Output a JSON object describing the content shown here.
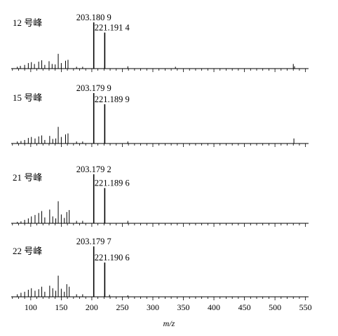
{
  "chart_data": {
    "type": "bar",
    "x_axis": {
      "label": "m/z",
      "xlim": [
        68,
        555
      ],
      "ticks": [
        "100",
        "150",
        "200",
        "250",
        "300",
        "350",
        "400",
        "450",
        "500",
        "550"
      ]
    },
    "panels": [
      {
        "label": "12 号峰",
        "annotations": [
          "203.180 9",
          "221.191 4"
        ],
        "peaks": [
          {
            "mz": 203.18,
            "intensity": 100
          },
          {
            "mz": 221.19,
            "intensity": 78
          }
        ],
        "minor_peaks": [
          {
            "mz": 78,
            "intensity": 4
          },
          {
            "mz": 83,
            "intensity": 6
          },
          {
            "mz": 90,
            "intensity": 8
          },
          {
            "mz": 96,
            "intensity": 12
          },
          {
            "mz": 101,
            "intensity": 14
          },
          {
            "mz": 106,
            "intensity": 10
          },
          {
            "mz": 113,
            "intensity": 15
          },
          {
            "mz": 118,
            "intensity": 18
          },
          {
            "mz": 123,
            "intensity": 8
          },
          {
            "mz": 130,
            "intensity": 16
          },
          {
            "mz": 135,
            "intensity": 10
          },
          {
            "mz": 140,
            "intensity": 9
          },
          {
            "mz": 145,
            "intensity": 32
          },
          {
            "mz": 150,
            "intensity": 12
          },
          {
            "mz": 157,
            "intensity": 17
          },
          {
            "mz": 161,
            "intensity": 19
          },
          {
            "mz": 175,
            "intensity": 4
          },
          {
            "mz": 185,
            "intensity": 4
          },
          {
            "mz": 203,
            "intensity": 8
          },
          {
            "mz": 221,
            "intensity": 6
          },
          {
            "mz": 259,
            "intensity": 5
          },
          {
            "mz": 337,
            "intensity": 4
          },
          {
            "mz": 530,
            "intensity": 10
          },
          {
            "mz": 532,
            "intensity": 5
          }
        ]
      },
      {
        "label": "15 号峰",
        "annotations": [
          "203.179 9",
          "221.189 9"
        ],
        "peaks": [
          {
            "mz": 203.18,
            "intensity": 100
          },
          {
            "mz": 221.19,
            "intensity": 78
          }
        ],
        "minor_peaks": [
          {
            "mz": 78,
            "intensity": 4
          },
          {
            "mz": 84,
            "intensity": 5
          },
          {
            "mz": 90,
            "intensity": 7
          },
          {
            "mz": 96,
            "intensity": 11
          },
          {
            "mz": 101,
            "intensity": 13
          },
          {
            "mz": 107,
            "intensity": 10
          },
          {
            "mz": 113,
            "intensity": 14
          },
          {
            "mz": 118,
            "intensity": 16
          },
          {
            "mz": 123,
            "intensity": 7
          },
          {
            "mz": 131,
            "intensity": 15
          },
          {
            "mz": 136,
            "intensity": 9
          },
          {
            "mz": 141,
            "intensity": 10
          },
          {
            "mz": 145,
            "intensity": 33
          },
          {
            "mz": 150,
            "intensity": 13
          },
          {
            "mz": 157,
            "intensity": 18
          },
          {
            "mz": 161,
            "intensity": 20
          },
          {
            "mz": 175,
            "intensity": 4
          },
          {
            "mz": 185,
            "intensity": 4
          },
          {
            "mz": 203,
            "intensity": 7
          },
          {
            "mz": 221,
            "intensity": 6
          },
          {
            "mz": 259,
            "intensity": 4
          },
          {
            "mz": 531,
            "intensity": 10
          }
        ]
      },
      {
        "label": "21 号峰",
        "annotations": [
          "203.179 2",
          "221.189 6"
        ],
        "peaks": [
          {
            "mz": 203.18,
            "intensity": 100
          },
          {
            "mz": 221.19,
            "intensity": 72
          }
        ],
        "minor_peaks": [
          {
            "mz": 78,
            "intensity": 3
          },
          {
            "mz": 84,
            "intensity": 4
          },
          {
            "mz": 90,
            "intensity": 7
          },
          {
            "mz": 96,
            "intensity": 10
          },
          {
            "mz": 101,
            "intensity": 14
          },
          {
            "mz": 107,
            "intensity": 17
          },
          {
            "mz": 113,
            "intensity": 21
          },
          {
            "mz": 118,
            "intensity": 25
          },
          {
            "mz": 123,
            "intensity": 12
          },
          {
            "mz": 131,
            "intensity": 28
          },
          {
            "mz": 136,
            "intensity": 14
          },
          {
            "mz": 141,
            "intensity": 10
          },
          {
            "mz": 145,
            "intensity": 45
          },
          {
            "mz": 150,
            "intensity": 18
          },
          {
            "mz": 155,
            "intensity": 11
          },
          {
            "mz": 159,
            "intensity": 23
          },
          {
            "mz": 163,
            "intensity": 27
          },
          {
            "mz": 175,
            "intensity": 5
          },
          {
            "mz": 185,
            "intensity": 5
          },
          {
            "mz": 203,
            "intensity": 8
          },
          {
            "mz": 221,
            "intensity": 6
          },
          {
            "mz": 259,
            "intensity": 5
          }
        ]
      },
      {
        "label": "22 号峰",
        "annotations": [
          "203.179 7",
          "221.190 6"
        ],
        "peaks": [
          {
            "mz": 203.18,
            "intensity": 100
          },
          {
            "mz": 221.19,
            "intensity": 68
          }
        ],
        "minor_peaks": [
          {
            "mz": 78,
            "intensity": 5
          },
          {
            "mz": 84,
            "intensity": 8
          },
          {
            "mz": 90,
            "intensity": 10
          },
          {
            "mz": 96,
            "intensity": 14
          },
          {
            "mz": 101,
            "intensity": 17
          },
          {
            "mz": 107,
            "intensity": 12
          },
          {
            "mz": 113,
            "intensity": 15
          },
          {
            "mz": 118,
            "intensity": 20
          },
          {
            "mz": 123,
            "intensity": 10
          },
          {
            "mz": 131,
            "intensity": 22
          },
          {
            "mz": 136,
            "intensity": 17
          },
          {
            "mz": 141,
            "intensity": 12
          },
          {
            "mz": 145,
            "intensity": 42
          },
          {
            "mz": 150,
            "intensity": 16
          },
          {
            "mz": 155,
            "intensity": 10
          },
          {
            "mz": 159,
            "intensity": 25
          },
          {
            "mz": 163,
            "intensity": 20
          },
          {
            "mz": 175,
            "intensity": 5
          },
          {
            "mz": 185,
            "intensity": 5
          },
          {
            "mz": 203,
            "intensity": 8
          },
          {
            "mz": 221,
            "intensity": 7
          },
          {
            "mz": 229,
            "intensity": 4
          },
          {
            "mz": 259,
            "intensity": 3
          }
        ]
      }
    ]
  }
}
